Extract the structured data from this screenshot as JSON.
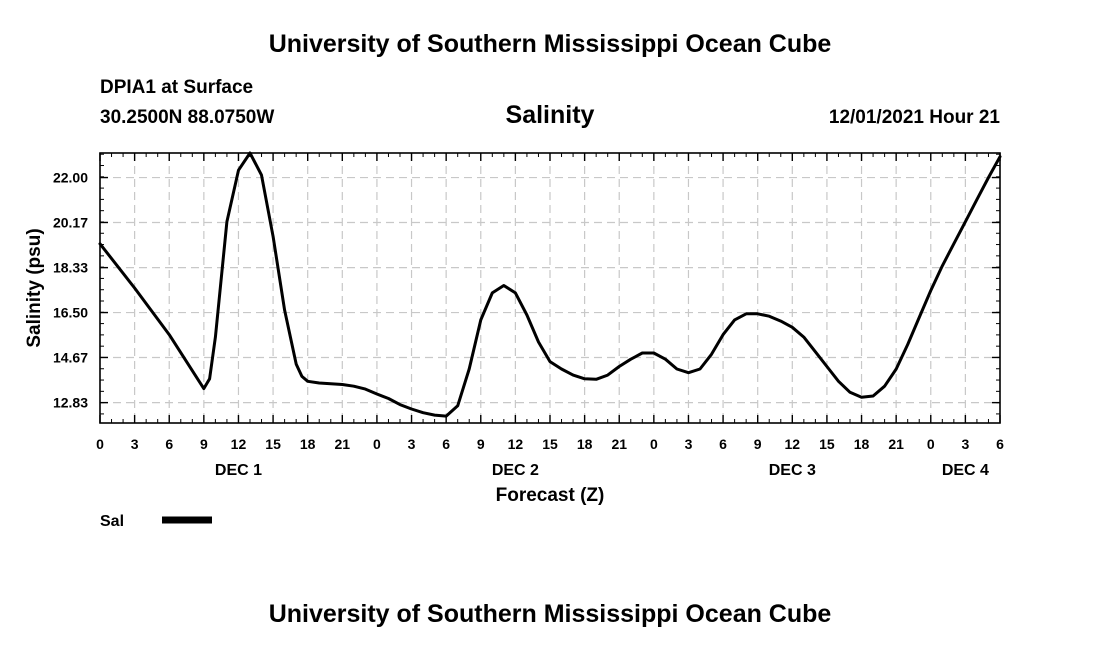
{
  "header": {
    "main_title": "University of Southern Mississippi Ocean Cube",
    "station": "DPIA1 at Surface",
    "coords": "30.2500N  88.0750W",
    "variable": "Salinity",
    "datetime": "12/01/2021 Hour 21"
  },
  "footer": {
    "title": "University of Southern Mississippi Ocean Cube"
  },
  "colors": {
    "line": "#000000",
    "grid": "#c8c8c8"
  },
  "chart_data": {
    "type": "line",
    "title": "Salinity",
    "xlabel": "Forecast (Z)",
    "ylabel": "Salinity (psu)",
    "xlim": [
      0,
      78
    ],
    "ylim": [
      12.0,
      23.0
    ],
    "grid": true,
    "x_tick_values": [
      0,
      3,
      6,
      9,
      12,
      15,
      18,
      21,
      24,
      27,
      30,
      33,
      36,
      39,
      42,
      45,
      48,
      51,
      54,
      57,
      60,
      63,
      66,
      69,
      72,
      75,
      78
    ],
    "x_tick_labels": [
      "0",
      "3",
      "6",
      "9",
      "12",
      "15",
      "18",
      "21",
      "0",
      "3",
      "6",
      "9",
      "12",
      "15",
      "18",
      "21",
      "0",
      "3",
      "6",
      "9",
      "12",
      "15",
      "18",
      "21",
      "0",
      "3",
      "6"
    ],
    "y_tick_values": [
      12.83,
      14.67,
      16.5,
      18.33,
      20.17,
      22.0
    ],
    "y_tick_labels": [
      "12.83",
      "14.67",
      "16.50",
      "18.33",
      "20.17",
      "22.00"
    ],
    "day_labels": [
      {
        "x": 12,
        "label": "DEC 1"
      },
      {
        "x": 36,
        "label": "DEC 2"
      },
      {
        "x": 60,
        "label": "DEC 3"
      },
      {
        "x": 75,
        "label": "DEC 4"
      }
    ],
    "legend": [
      {
        "name": "Sal",
        "placement": "bottom-left"
      }
    ],
    "series": [
      {
        "name": "Sal",
        "x": [
          0,
          3,
          6,
          9,
          9.5,
          10,
          11,
          12,
          13,
          14,
          15,
          16,
          17,
          17.5,
          18,
          19,
          20,
          21,
          22,
          23,
          24,
          25,
          26,
          27,
          28,
          29,
          30,
          31,
          32,
          33,
          34,
          35,
          36,
          37,
          38,
          39,
          40,
          41,
          42,
          43,
          44,
          45,
          46,
          47,
          48,
          49,
          50,
          51,
          52,
          53,
          54,
          55,
          56,
          57,
          58,
          59,
          60,
          61,
          62,
          63,
          64,
          65,
          66,
          67,
          68,
          69,
          70,
          71,
          72,
          73,
          74,
          75,
          76,
          77,
          78
        ],
        "values": [
          19.3,
          17.5,
          15.6,
          13.4,
          13.8,
          15.5,
          20.2,
          22.3,
          23.0,
          22.1,
          19.6,
          16.6,
          14.4,
          13.9,
          13.7,
          13.63,
          13.6,
          13.57,
          13.5,
          13.38,
          13.18,
          13.0,
          12.75,
          12.57,
          12.42,
          12.32,
          12.28,
          12.7,
          14.2,
          16.2,
          17.3,
          17.6,
          17.3,
          16.4,
          15.3,
          14.5,
          14.2,
          13.95,
          13.8,
          13.78,
          13.95,
          14.3,
          14.6,
          14.85,
          14.85,
          14.6,
          14.2,
          14.05,
          14.2,
          14.8,
          15.6,
          16.2,
          16.45,
          16.45,
          16.35,
          16.15,
          15.9,
          15.5,
          14.9,
          14.3,
          13.7,
          13.25,
          13.05,
          13.1,
          13.5,
          14.2,
          15.2,
          16.3,
          17.4,
          18.4,
          19.3,
          20.2,
          21.1,
          22.0,
          22.85
        ]
      }
    ]
  }
}
